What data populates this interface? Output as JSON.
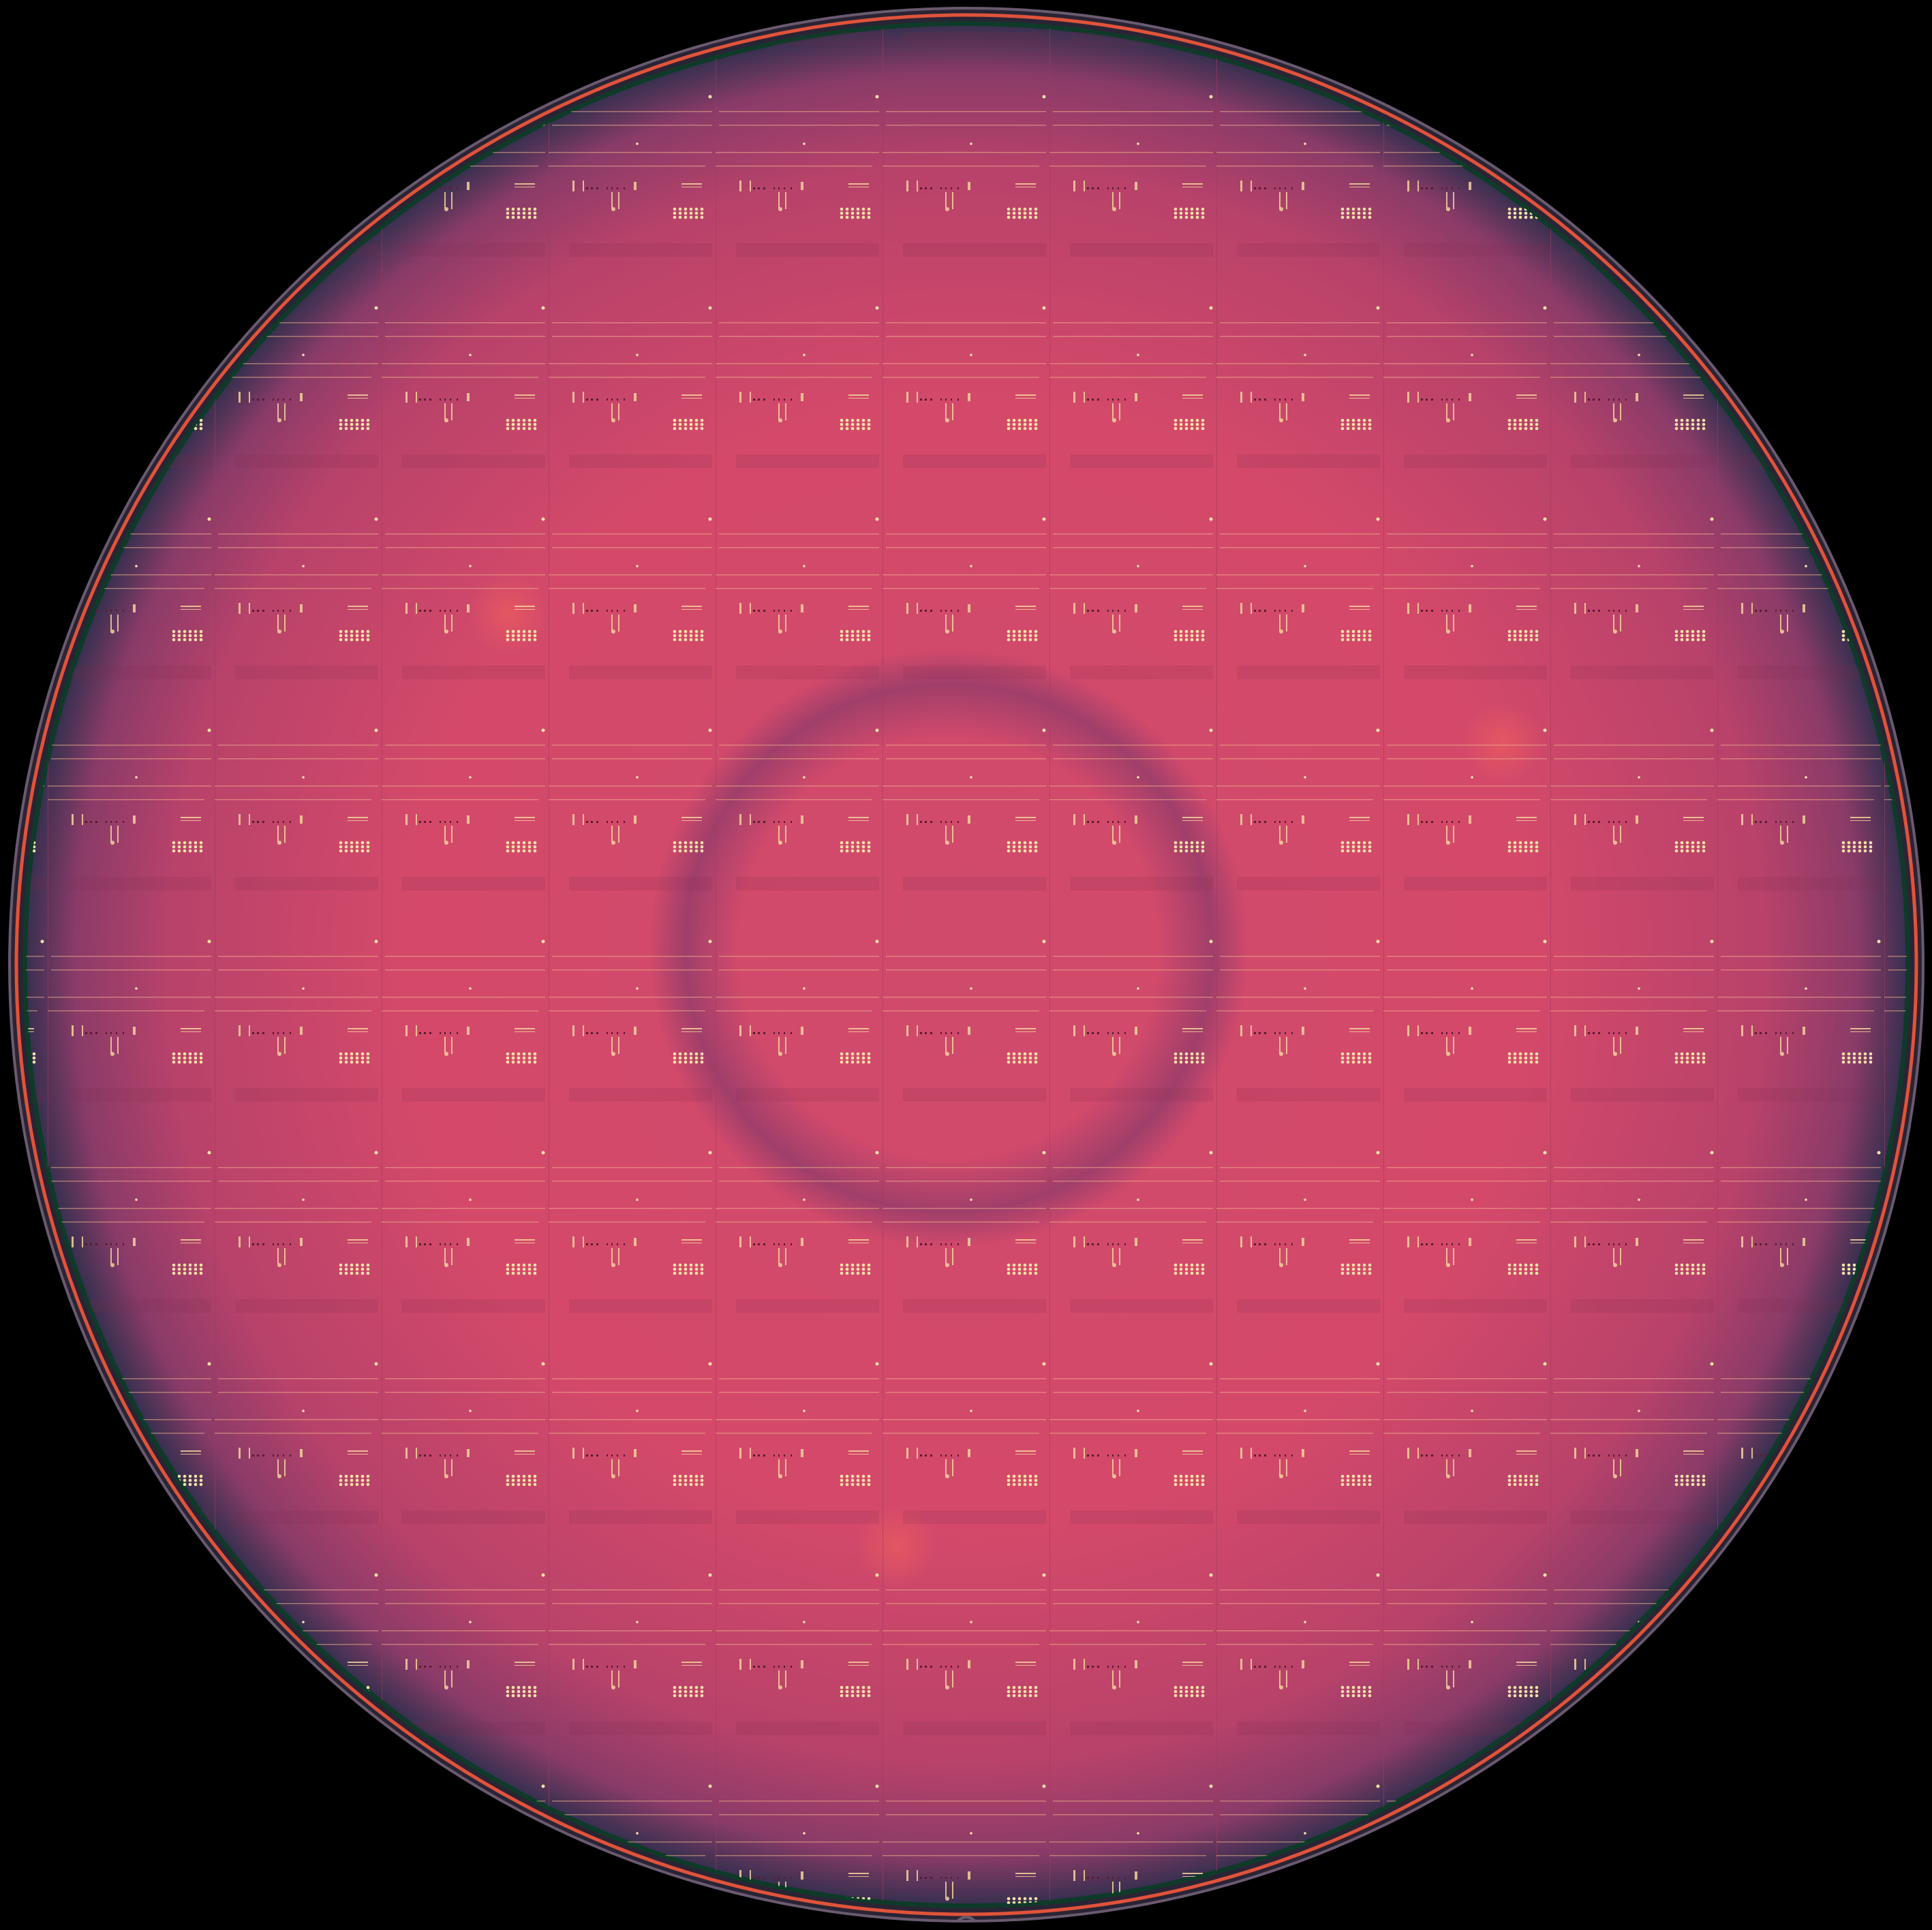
{
  "image": {
    "subject": "wafer",
    "colors": {
      "background": "#000000",
      "wafer_center": "#d4496a",
      "wafer_mid": "#c0436a",
      "wafer_edge_shade": "#7a3a66",
      "edge_green": "#0f3a2a",
      "edge_red": "#e0533a",
      "pad_highlight": "#f3d29a",
      "center_ring": "#8a3a6a"
    }
  }
}
